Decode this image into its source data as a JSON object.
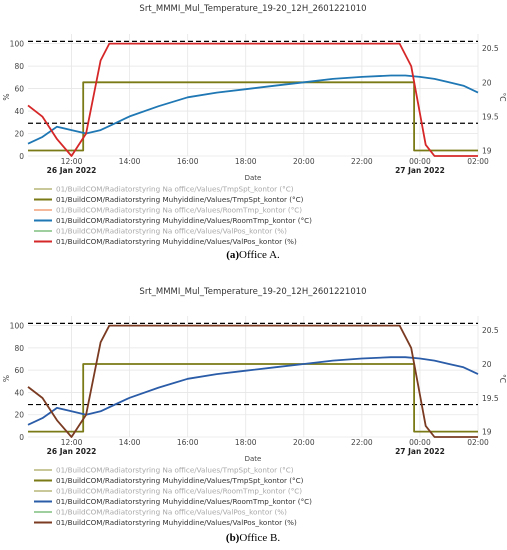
{
  "figure": {
    "captions": [
      {
        "label": "(a)",
        "text": "Office A."
      },
      {
        "label": "(b)",
        "text": "Office B."
      }
    ]
  },
  "chart_data": [
    {
      "type": "line",
      "title": "Srt_MMMI_Mul_Temperature_19-20_12H_2601221010",
      "xlabel": "Date",
      "ylabel_left": "%",
      "ylabel_right": "°C",
      "x_ticks": [
        "12:00",
        "14:00",
        "16:00",
        "18:00",
        "20:00",
        "22:00",
        "00:00",
        "02:00"
      ],
      "x_date_labels": [
        {
          "at": "12:00",
          "text": "26 Jan 2022"
        },
        {
          "at": "00:00",
          "text": "27 Jan 2022"
        }
      ],
      "xlim": [
        "2022-01-26 10:30",
        "2022-01-27 02:00"
      ],
      "ylim_left": [
        0,
        105
      ],
      "yticks_left": [
        0,
        20,
        40,
        60,
        80,
        100
      ],
      "ylim_right": [
        18.92,
        20.65
      ],
      "yticks_right": [
        19,
        19.5,
        20,
        20.5
      ],
      "grid": true,
      "legend_position": "below",
      "reference_lines": [
        {
          "axis": "right",
          "value": 20.6,
          "style": "dashed",
          "color": "#000000"
        },
        {
          "axis": "right",
          "value": 19.4,
          "style": "dashed",
          "color": "#000000"
        }
      ],
      "series": [
        {
          "name": "01/BuildCOM/Radiatorstyring Na office/Values/TmpSpt_kontor (°C)",
          "color": "#c8c89a",
          "faded": true,
          "axis": "right",
          "x": [],
          "y": []
        },
        {
          "name": "01/BuildCOM/Radiatorstyring Muhyiddine/Values/TmpSpt_kontor (°C)",
          "color": "#7a7a16",
          "faded": false,
          "axis": "right",
          "x": [
            10.5,
            12.4,
            12.4,
            23.8,
            23.8,
            26.0
          ],
          "y": [
            19.0,
            19.0,
            20.0,
            20.0,
            19.0,
            19.0
          ]
        },
        {
          "name": "01/BuildCOM/Radiatorstyring Na office/Values/RoomTmp_kontor (°C)",
          "color": "#f5b89a",
          "faded": true,
          "axis": "right",
          "x": [],
          "y": []
        },
        {
          "name": "01/BuildCOM/Radiatorstyring Muhyiddine/Values/RoomTmp_kontor (°C)",
          "color": "#1f77b4",
          "faded": false,
          "axis": "right",
          "x": [
            10.5,
            11.0,
            11.5,
            12.0,
            12.5,
            13.0,
            13.5,
            14.0,
            15.0,
            16.0,
            17.0,
            18.0,
            19.0,
            20.0,
            21.0,
            22.0,
            23.0,
            23.5,
            24.0,
            24.5,
            25.0,
            25.5,
            26.0
          ],
          "y": [
            19.1,
            19.2,
            19.35,
            19.3,
            19.25,
            19.3,
            19.4,
            19.5,
            19.65,
            19.78,
            19.85,
            19.9,
            19.95,
            20.0,
            20.05,
            20.08,
            20.1,
            20.1,
            20.08,
            20.05,
            20.0,
            19.95,
            19.85
          ]
        },
        {
          "name": "01/BuildCOM/Radiatorstyring Na office/Values/ValPos_kontor (%)",
          "color": "#9fcf9f",
          "faded": true,
          "axis": "left",
          "x": [],
          "y": []
        },
        {
          "name": "01/BuildCOM/Radiatorstyring Muhyiddine/Values/ValPos_kontor (%)",
          "color": "#d62728",
          "faded": false,
          "axis": "left",
          "x": [
            10.5,
            11.0,
            11.5,
            12.0,
            12.5,
            13.0,
            13.3,
            23.3,
            23.7,
            24.2,
            24.5,
            26.0
          ],
          "y": [
            45,
            35,
            15,
            0,
            20,
            85,
            100,
            100,
            80,
            10,
            0,
            0
          ]
        }
      ]
    },
    {
      "type": "line",
      "title": "Srt_MMMI_Mul_Temperature_19-20_12H_2601221010",
      "xlabel": "Date",
      "ylabel_left": "%",
      "ylabel_right": "°C",
      "x_ticks": [
        "12:00",
        "14:00",
        "16:00",
        "18:00",
        "20:00",
        "22:00",
        "00:00",
        "02:00"
      ],
      "x_date_labels": [
        {
          "at": "12:00",
          "text": "26 Jan 2022"
        },
        {
          "at": "00:00",
          "text": "27 Jan 2022"
        }
      ],
      "xlim": [
        "2022-01-26 10:30",
        "2022-01-27 02:00"
      ],
      "ylim_left": [
        0,
        105
      ],
      "yticks_left": [
        0,
        20,
        40,
        60,
        80,
        100
      ],
      "ylim_right": [
        18.92,
        20.65
      ],
      "yticks_right": [
        19,
        19.5,
        20,
        20.5
      ],
      "grid": true,
      "legend_position": "below",
      "reference_lines": [
        {
          "axis": "right",
          "value": 20.6,
          "style": "dashed",
          "color": "#000000"
        },
        {
          "axis": "right",
          "value": 19.4,
          "style": "dashed",
          "color": "#000000"
        }
      ],
      "series": [
        {
          "name": "01/BuildCOM/Radiatorstyring Na office/Values/TmpSpt_kontor (°C)",
          "color": "#c8c89a",
          "faded": true,
          "axis": "right",
          "x": [],
          "y": []
        },
        {
          "name": "01/BuildCOM/Radiatorstyring Muhyiddine/Values/TmpSpt_kontor (°C)",
          "color": "#7a7a16",
          "faded": false,
          "axis": "right",
          "x": [
            10.5,
            12.4,
            12.4,
            23.8,
            23.8,
            26.0
          ],
          "y": [
            19.0,
            19.0,
            20.0,
            20.0,
            19.0,
            19.0
          ]
        },
        {
          "name": "01/BuildCOM/Radiatorstyring Na office/Values/RoomTmp_kontor (°C)",
          "color": "#c8c89a",
          "faded": true,
          "axis": "right",
          "x": [],
          "y": []
        },
        {
          "name": "01/BuildCOM/Radiatorstyring Muhyiddine/Values/RoomTmp_kontor (°C)",
          "color": "#2a5ca8",
          "faded": false,
          "axis": "right",
          "x": [
            10.5,
            11.0,
            11.5,
            12.0,
            12.5,
            13.0,
            13.5,
            14.0,
            15.0,
            16.0,
            17.0,
            18.0,
            19.0,
            20.0,
            21.0,
            22.0,
            23.0,
            23.5,
            24.0,
            24.5,
            25.0,
            25.5,
            26.0
          ],
          "y": [
            19.1,
            19.2,
            19.35,
            19.3,
            19.25,
            19.3,
            19.4,
            19.5,
            19.65,
            19.78,
            19.85,
            19.9,
            19.95,
            20.0,
            20.05,
            20.08,
            20.1,
            20.1,
            20.08,
            20.05,
            20.0,
            19.95,
            19.85
          ]
        },
        {
          "name": "01/BuildCOM/Radiatorstyring Na office/Values/ValPos_kontor (%)",
          "color": "#9fcf9f",
          "faded": true,
          "axis": "left",
          "x": [],
          "y": []
        },
        {
          "name": "01/BuildCOM/Radiatorstyring Muhyiddine/Values/ValPos_kontor (%)",
          "color": "#7a3b22",
          "faded": false,
          "axis": "left",
          "x": [
            10.5,
            11.0,
            11.5,
            12.0,
            12.5,
            13.0,
            13.3,
            23.3,
            23.7,
            24.2,
            24.5,
            26.0
          ],
          "y": [
            45,
            35,
            15,
            0,
            20,
            85,
            100,
            100,
            80,
            10,
            0,
            0
          ]
        }
      ]
    }
  ]
}
